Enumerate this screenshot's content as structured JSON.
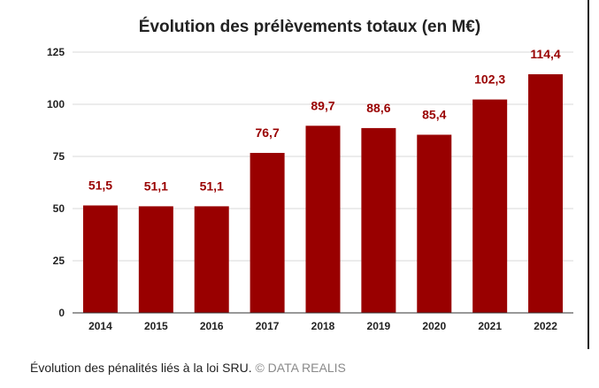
{
  "chart_data": {
    "type": "bar",
    "title": "Évolution des prélèvements totaux (en M€)",
    "categories": [
      "2014",
      "2015",
      "2016",
      "2017",
      "2018",
      "2019",
      "2020",
      "2021",
      "2022"
    ],
    "values": [
      51.5,
      51.1,
      51.1,
      76.7,
      89.7,
      88.6,
      85.4,
      102.3,
      114.4
    ],
    "value_labels": [
      "51,5",
      "51,1",
      "51,1",
      "76,7",
      "89,7",
      "88,6",
      "85,4",
      "102,3",
      "114,4"
    ],
    "xlabel": "",
    "ylabel": "",
    "ylim": [
      0,
      125
    ],
    "yticks": [
      0,
      25,
      50,
      75,
      100,
      125
    ],
    "grid": true,
    "legend": "none",
    "bar_color": "#990000",
    "label_color": "#990000"
  },
  "caption": {
    "text": "Évolution des pénalités liés à la loi SRU.",
    "credit": "© DATA REALIS"
  }
}
